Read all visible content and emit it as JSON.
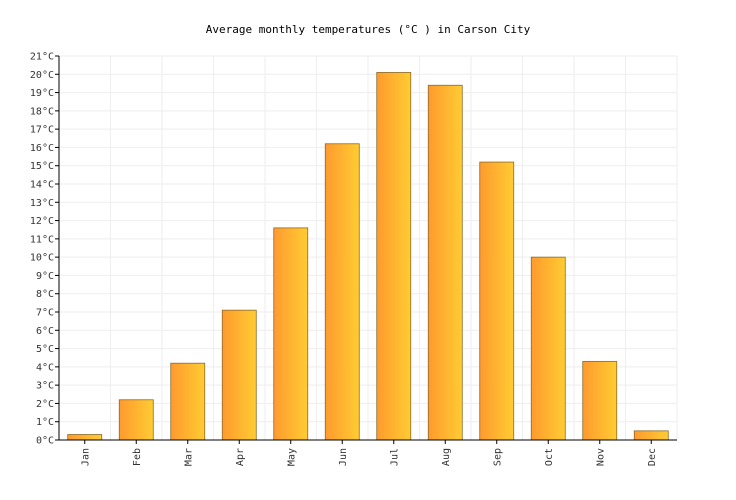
{
  "chart_data": {
    "type": "bar",
    "title": "Average monthly temperatures (°C ) in Carson City",
    "categories": [
      "Jan",
      "Feb",
      "Mar",
      "Apr",
      "May",
      "Jun",
      "Jul",
      "Aug",
      "Sep",
      "Oct",
      "Nov",
      "Dec"
    ],
    "values": [
      0.3,
      2.2,
      4.2,
      7.1,
      11.6,
      16.2,
      20.1,
      19.4,
      15.2,
      10.0,
      4.3,
      0.5
    ],
    "ylim": [
      0,
      21
    ],
    "y_ticks": [
      "0°C",
      "1°C",
      "2°C",
      "3°C",
      "4°C",
      "5°C",
      "6°C",
      "7°C",
      "8°C",
      "9°C",
      "10°C",
      "11°C",
      "12°C",
      "13°C",
      "14°C",
      "15°C",
      "16°C",
      "17°C",
      "18°C",
      "19°C",
      "20°C",
      "21°C"
    ],
    "grid": true,
    "legend": "none",
    "colors": {
      "bar_gradient_start": "#ff9a2e",
      "bar_gradient_end": "#ffcc33",
      "bar_border": "#8a6a2a"
    }
  }
}
